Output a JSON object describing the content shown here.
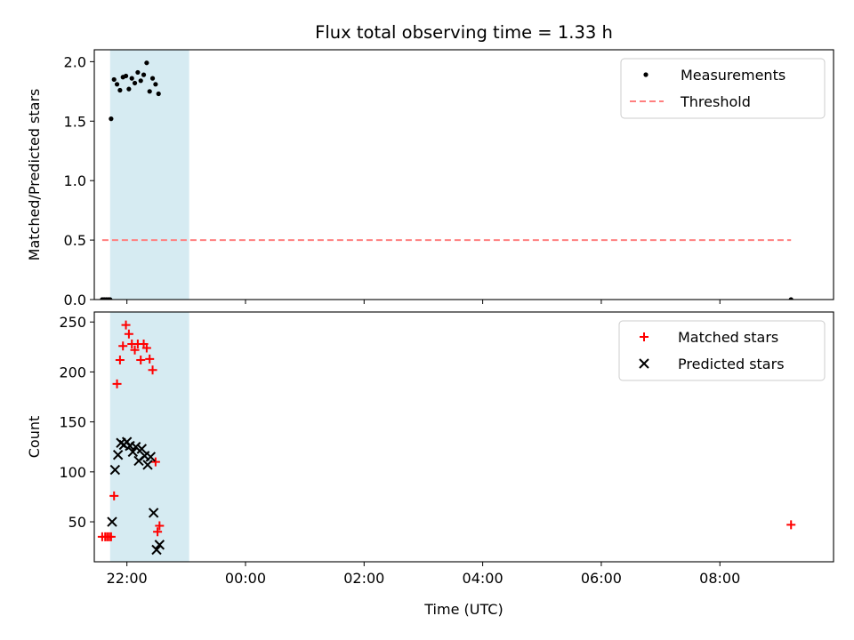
{
  "chart_data": [
    {
      "type": "scatter",
      "title": "Flux total observing time = 1.33 h",
      "xlabel": "",
      "ylabel": "Matched/Predicted stars",
      "xlim": [
        "21:27",
        "09:55"
      ],
      "ylim": [
        0,
        2.1
      ],
      "yticks": [
        "0.0",
        "0.5",
        "1.0",
        "1.5",
        "2.0"
      ],
      "grid": false,
      "legend_position": "top-right",
      "shaded_interval": {
        "start": "21:43",
        "end": "23:03",
        "color": "#add8e6"
      },
      "series": [
        {
          "name": "Measurements",
          "marker": "dot",
          "color": "#000000",
          "points": [
            [
              "21:35",
              0.0
            ],
            [
              "21:37",
              0.0
            ],
            [
              "21:39",
              0.0
            ],
            [
              "21:41",
              0.0
            ],
            [
              "21:43",
              0.0
            ],
            [
              "21:44",
              1.52
            ],
            [
              "21:47",
              1.85
            ],
            [
              "21:50",
              1.81
            ],
            [
              "21:53",
              1.76
            ],
            [
              "21:56",
              1.87
            ],
            [
              "21:59",
              1.88
            ],
            [
              "22:02",
              1.77
            ],
            [
              "22:05",
              1.86
            ],
            [
              "22:08",
              1.82
            ],
            [
              "22:11",
              1.91
            ],
            [
              "22:14",
              1.84
            ],
            [
              "22:17",
              1.89
            ],
            [
              "22:20",
              1.99
            ],
            [
              "22:23",
              1.75
            ],
            [
              "22:26",
              1.86
            ],
            [
              "22:29",
              1.81
            ],
            [
              "22:32",
              1.73
            ],
            [
              "09:12",
              0.0
            ]
          ]
        },
        {
          "name": "Threshold",
          "marker": "dashed-line",
          "color": "#ff7f7f",
          "points": [
            [
              "21:35",
              0.5
            ],
            [
              "09:12",
              0.5
            ]
          ]
        }
      ]
    },
    {
      "type": "scatter",
      "title": "",
      "xlabel": "Time (UTC)",
      "ylabel": "Count",
      "xlim": [
        "21:27",
        "09:55"
      ],
      "ylim": [
        10,
        260
      ],
      "xticks": [
        "22:00",
        "00:00",
        "02:00",
        "04:00",
        "06:00",
        "08:00"
      ],
      "yticks": [
        "50",
        "100",
        "150",
        "200",
        "250"
      ],
      "grid": false,
      "legend_position": "top-right",
      "shaded_interval": {
        "start": "21:43",
        "end": "23:03",
        "color": "#add8e6"
      },
      "series": [
        {
          "name": "Matched stars",
          "marker": "plus",
          "color": "#ff0000",
          "points": [
            [
              "21:35",
              35
            ],
            [
              "21:38",
              35
            ],
            [
              "21:40",
              35
            ],
            [
              "21:42",
              35
            ],
            [
              "21:44",
              35
            ],
            [
              "21:47",
              76
            ],
            [
              "21:50",
              188
            ],
            [
              "21:53",
              212
            ],
            [
              "21:56",
              226
            ],
            [
              "21:59",
              247
            ],
            [
              "22:02",
              238
            ],
            [
              "22:05",
              228
            ],
            [
              "22:08",
              222
            ],
            [
              "22:11",
              228
            ],
            [
              "22:14",
              212
            ],
            [
              "22:17",
              228
            ],
            [
              "22:20",
              224
            ],
            [
              "22:23",
              213
            ],
            [
              "22:26",
              202
            ],
            [
              "22:29",
              110
            ],
            [
              "22:31",
              40
            ],
            [
              "22:33",
              46
            ],
            [
              "09:12",
              47
            ]
          ]
        },
        {
          "name": "Predicted stars",
          "marker": "x",
          "color": "#000000",
          "points": [
            [
              "21:45",
              50
            ],
            [
              "21:48",
              102
            ],
            [
              "21:51",
              117
            ],
            [
              "21:54",
              129
            ],
            [
              "21:57",
              127
            ],
            [
              "22:00",
              130
            ],
            [
              "22:03",
              126
            ],
            [
              "22:06",
              120
            ],
            [
              "22:09",
              125
            ],
            [
              "22:12",
              111
            ],
            [
              "22:15",
              123
            ],
            [
              "22:18",
              116
            ],
            [
              "22:21",
              107
            ],
            [
              "22:24",
              115
            ],
            [
              "22:27",
              59
            ],
            [
              "22:30",
              22
            ],
            [
              "22:33",
              27
            ]
          ]
        }
      ]
    }
  ]
}
